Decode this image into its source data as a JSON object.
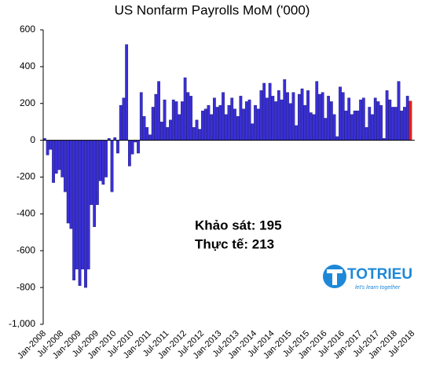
{
  "chart_data": {
    "type": "bar",
    "title": "US Nonfarm Payrolls MoM ('000)",
    "categories": [
      "Jan-2008",
      null,
      null,
      null,
      null,
      null,
      "Jul-2008",
      null,
      null,
      null,
      null,
      null,
      "Jan-2009",
      null,
      null,
      null,
      null,
      null,
      "Jul-2009",
      null,
      null,
      null,
      null,
      null,
      "Jan-2010",
      null,
      null,
      null,
      null,
      null,
      "Jul-2010",
      null,
      null,
      null,
      null,
      null,
      "Jan-2011",
      null,
      null,
      null,
      null,
      null,
      "Jul-2011",
      null,
      null,
      null,
      null,
      null,
      "Jan-2012",
      null,
      null,
      null,
      null,
      null,
      "Jul-2012",
      null,
      null,
      null,
      null,
      null,
      "Jan-2013",
      null,
      null,
      null,
      null,
      null,
      "Jul-2013",
      null,
      null,
      null,
      null,
      null,
      "Jan-2014",
      null,
      null,
      null,
      null,
      null,
      "Jul-2014",
      null,
      null,
      null,
      null,
      null,
      "Jan-2015",
      null,
      null,
      null,
      null,
      null,
      "Jul-2015",
      null,
      null,
      null,
      null,
      null,
      "Jan-2016",
      null,
      null,
      null,
      null,
      null,
      "Jul-2016",
      null,
      null,
      null,
      null,
      null,
      "Jan-2017",
      null,
      null,
      null,
      null,
      null,
      "Jul-2017",
      null,
      null,
      null,
      null,
      null,
      "Jan-2018",
      null,
      null,
      null,
      null,
      null,
      "Jul-2018"
    ],
    "values": [
      10,
      -80,
      -50,
      -230,
      -180,
      -160,
      -200,
      -280,
      -450,
      -480,
      -760,
      -700,
      -790,
      -700,
      -800,
      -700,
      -350,
      -470,
      -350,
      -220,
      -240,
      -200,
      10,
      -280,
      15,
      -70,
      190,
      230,
      520,
      -140,
      -75,
      -10,
      -70,
      260,
      130,
      70,
      30,
      180,
      250,
      320,
      100,
      220,
      70,
      110,
      220,
      210,
      140,
      210,
      340,
      260,
      240,
      70,
      110,
      60,
      160,
      170,
      190,
      140,
      230,
      180,
      190,
      260,
      140,
      190,
      230,
      170,
      130,
      240,
      170,
      210,
      220,
      90,
      190,
      170,
      270,
      310,
      230,
      310,
      240,
      210,
      270,
      220,
      330,
      260,
      200,
      260,
      80,
      250,
      280,
      190,
      270,
      150,
      140,
      320,
      250,
      260,
      120,
      240,
      210,
      140,
      20,
      290,
      260,
      160,
      230,
      140,
      160,
      160,
      220,
      230,
      70,
      180,
      140,
      230,
      210,
      190,
      10,
      270,
      220,
      180,
      180,
      320,
      160,
      180,
      240,
      213,
      null
    ],
    "color": "#3a2fd8",
    "last_color": "#e8201c",
    "ylim": [
      -1000,
      600
    ],
    "yticks": [
      600,
      400,
      200,
      0,
      -200,
      -400,
      -600,
      -800,
      {
        "value": -1000,
        "label": "-1,000"
      }
    ],
    "annotations": [
      "Khảo sát: 195",
      "Thực tế: 213"
    ],
    "logo": {
      "name": "TOTRIEU",
      "tagline": "let's learn together"
    }
  }
}
